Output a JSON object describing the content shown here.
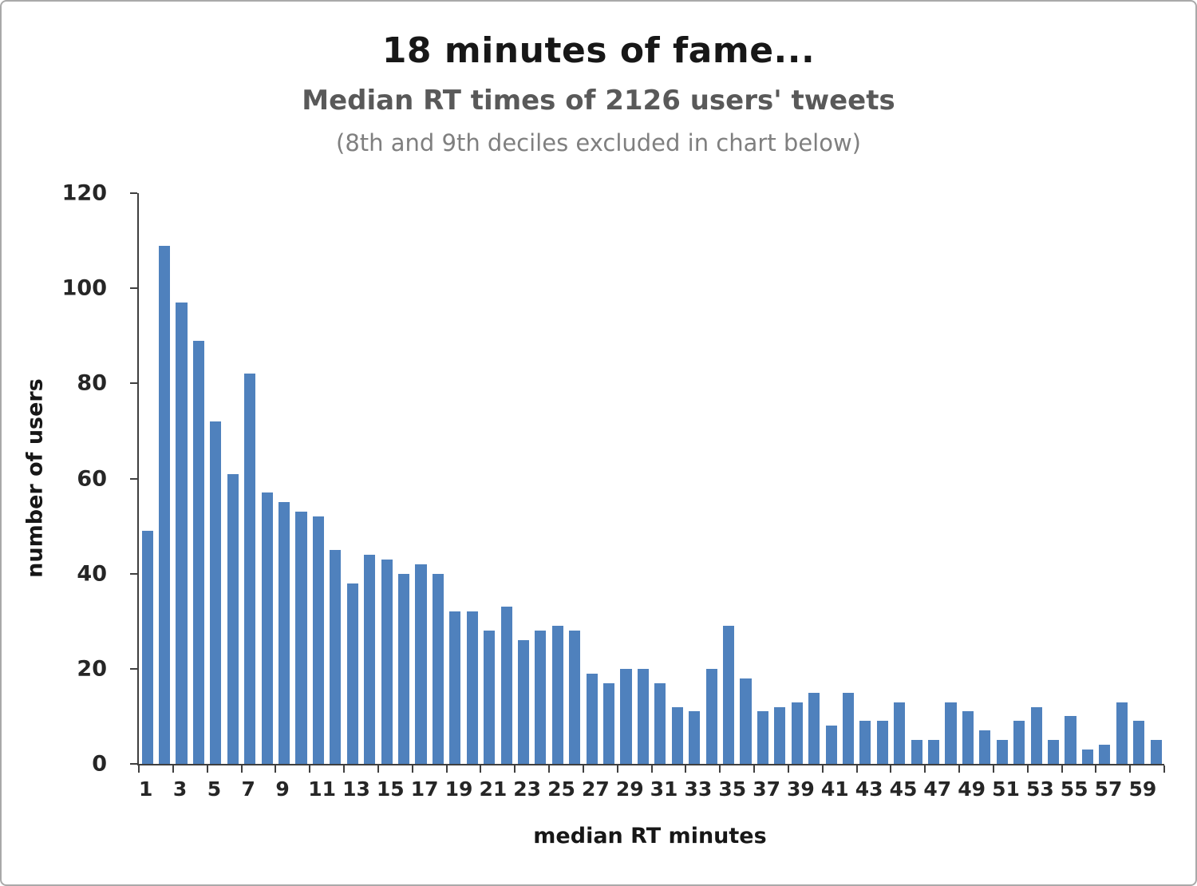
{
  "chart_data": {
    "type": "bar",
    "title": "18 minutes of fame...",
    "subtitle": "Median RT times of 2126 users' tweets",
    "note": "(8th and 9th deciles excluded in chart below)",
    "xlabel": "median RT minutes",
    "ylabel": "number of users",
    "ylim": [
      0,
      120
    ],
    "yticks": [
      0,
      20,
      40,
      60,
      80,
      100,
      120
    ],
    "grid": false,
    "legend": false,
    "bar_color": "#4f81bd",
    "axis_color": "#3f3f3f",
    "x": [
      1,
      2,
      3,
      4,
      5,
      6,
      7,
      8,
      9,
      10,
      11,
      12,
      13,
      14,
      15,
      16,
      17,
      18,
      19,
      20,
      21,
      22,
      23,
      24,
      25,
      26,
      27,
      28,
      29,
      30,
      31,
      32,
      33,
      34,
      35,
      36,
      37,
      38,
      39,
      40,
      41,
      42,
      43,
      44,
      45,
      46,
      47,
      48,
      49,
      50,
      51,
      52,
      53,
      54,
      55,
      56,
      57,
      58,
      59,
      60
    ],
    "values": [
      49,
      109,
      97,
      89,
      72,
      61,
      82,
      57,
      55,
      53,
      52,
      45,
      38,
      44,
      43,
      40,
      42,
      40,
      32,
      32,
      28,
      33,
      26,
      28,
      29,
      28,
      19,
      17,
      20,
      20,
      17,
      12,
      11,
      20,
      29,
      18,
      11,
      12,
      13,
      15,
      8,
      15,
      9,
      9,
      13,
      5,
      5,
      13,
      11,
      7,
      5,
      9,
      12,
      5,
      10,
      3,
      4,
      13,
      9,
      5
    ],
    "xtick_labels": [
      "1",
      "3",
      "5",
      "7",
      "9",
      "11",
      "13",
      "15",
      "17",
      "19",
      "21",
      "23",
      "25",
      "27",
      "29",
      "31",
      "33",
      "35",
      "37",
      "39",
      "41",
      "43",
      "45",
      "47",
      "49",
      "51",
      "53",
      "55",
      "57",
      "59"
    ]
  }
}
